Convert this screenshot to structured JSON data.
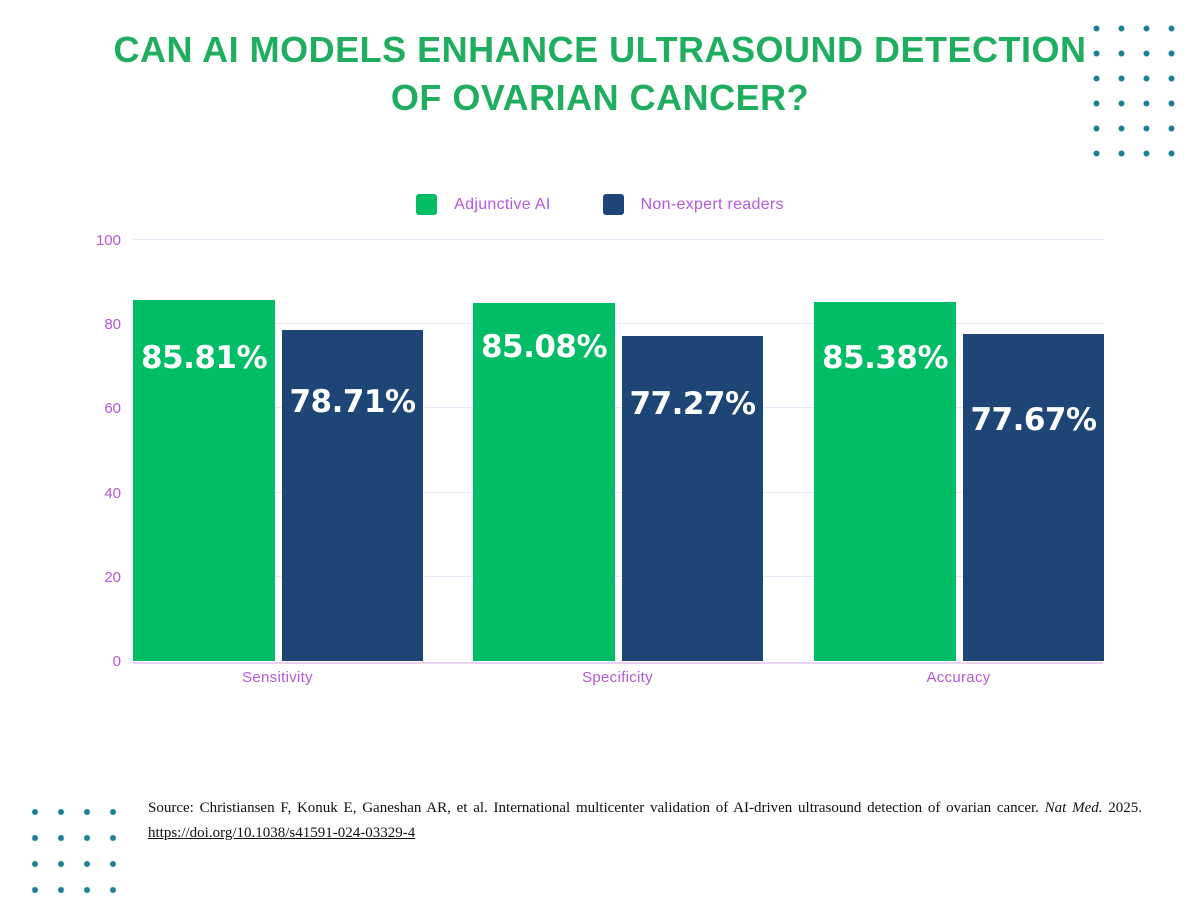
{
  "title": {
    "line1": "CAN AI MODELS ENHANCE ULTRASOUND DETECTION",
    "line2": "OF OVARIAN CANCER?"
  },
  "legend": [
    {
      "label": "Adjunctive AI",
      "color": "#00bd66"
    },
    {
      "label": "Non-expert readers",
      "color": "#1d4575"
    }
  ],
  "chart_data": {
    "type": "bar",
    "title": "Can AI models enhance ultrasound detection of ovarian cancer?",
    "categories": [
      "Sensitivity",
      "Specificity",
      "Accuracy"
    ],
    "series": [
      {
        "name": "Adjunctive AI",
        "color": "#00bd66",
        "values": [
          85.81,
          85.08,
          85.38
        ],
        "labels": [
          "85.81%",
          "85.08%",
          "85.38%"
        ],
        "label_offsets": [
          58,
          44,
          56
        ]
      },
      {
        "name": "Non-expert readers",
        "color": "#1d4575",
        "values": [
          78.71,
          77.27,
          77.67
        ],
        "labels": [
          "78.71%",
          "77.27%",
          "77.67%"
        ],
        "label_offsets": [
          72,
          68,
          86
        ]
      }
    ],
    "xlabel": "",
    "ylabel": "",
    "ylim": [
      0,
      100
    ],
    "yticks": [
      0,
      20,
      40,
      60,
      80,
      100
    ],
    "grid": true,
    "legend_position": "top"
  },
  "source": {
    "prefix": "Source: Christiansen F, Konuk E, Ganeshan AR, et al. International multicenter validation of AI-driven ultrasound detection of ovarian cancer.",
    "journal": "Nat Med.",
    "year": "2025.",
    "link": "https://doi.org/10.1038/s41591-024-03329-4"
  },
  "colors": {
    "title-green": "#1fae60",
    "bar-green": "#00bd66",
    "bar-navy": "#1d4575",
    "purple-text": "#b657d9",
    "gridline": "#f3e3f7",
    "baseline": "#e8d3f0",
    "dot-teal": "#1b7f93",
    "source-text": "#111111"
  }
}
